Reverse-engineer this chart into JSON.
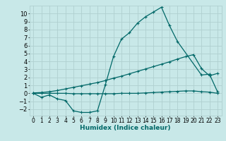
{
  "background_color": "#c8e8e8",
  "grid_color": "#b0d0d0",
  "line_color": "#006868",
  "line_width": 0.9,
  "marker": "+",
  "marker_size": 3.5,
  "marker_lw": 0.8,
  "xlabel": "Humidex (Indice chaleur)",
  "xlabel_fontsize": 6.5,
  "ytick_fontsize": 6,
  "xtick_fontsize": 5.5,
  "xlim": [
    -0.5,
    23.5
  ],
  "ylim": [
    -2.8,
    11.0
  ],
  "yticks": [
    -2,
    -1,
    0,
    1,
    2,
    3,
    4,
    5,
    6,
    7,
    8,
    9,
    10
  ],
  "xticks": [
    0,
    1,
    2,
    3,
    4,
    5,
    6,
    7,
    8,
    9,
    10,
    11,
    12,
    13,
    14,
    15,
    16,
    17,
    18,
    19,
    20,
    21,
    22,
    23
  ],
  "curve1_x": [
    0,
    1,
    2,
    3,
    4,
    5,
    6,
    7,
    8,
    9,
    10,
    11,
    12,
    13,
    14,
    15,
    16,
    17,
    18,
    21,
    22,
    23
  ],
  "curve1_y": [
    0.0,
    -0.5,
    -0.2,
    -0.7,
    -0.9,
    -2.2,
    -2.4,
    -2.4,
    -2.2,
    1.1,
    4.6,
    6.8,
    7.6,
    8.8,
    9.6,
    10.2,
    10.8,
    8.5,
    6.5,
    2.3,
    2.4,
    0.2
  ],
  "curve2_x": [
    0,
    1,
    2,
    3,
    4,
    5,
    6,
    7,
    8,
    9,
    10,
    11,
    12,
    13,
    14,
    15,
    16,
    17,
    18,
    19,
    20,
    21,
    22,
    23
  ],
  "curve2_y": [
    0.05,
    0.1,
    0.2,
    0.35,
    0.55,
    0.75,
    0.95,
    1.15,
    1.35,
    1.6,
    1.9,
    2.15,
    2.45,
    2.75,
    3.05,
    3.35,
    3.65,
    3.95,
    4.3,
    4.6,
    4.85,
    3.1,
    2.2,
    2.5
  ],
  "curve3_x": [
    0,
    1,
    2,
    3,
    4,
    5,
    6,
    7,
    8,
    9,
    10,
    11,
    12,
    13,
    14,
    15,
    16,
    17,
    18,
    19,
    20,
    21,
    22,
    23
  ],
  "curve3_y": [
    0.0,
    0.0,
    0.0,
    0.0,
    0.0,
    -0.05,
    -0.05,
    -0.05,
    -0.05,
    -0.05,
    -0.05,
    0.0,
    0.0,
    0.0,
    0.05,
    0.1,
    0.15,
    0.2,
    0.25,
    0.3,
    0.3,
    0.2,
    0.15,
    0.0
  ]
}
